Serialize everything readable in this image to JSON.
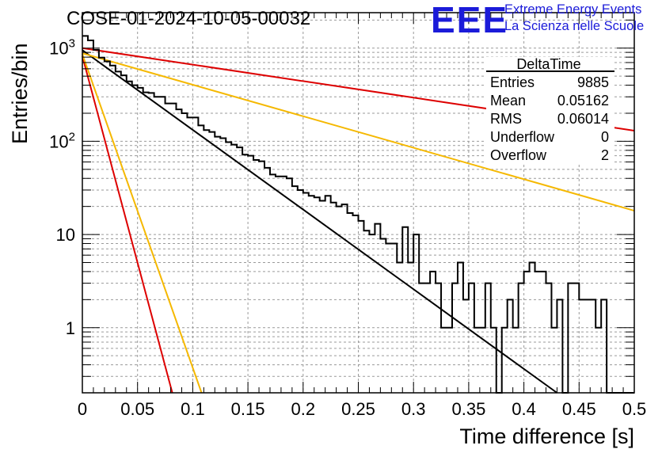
{
  "header": {
    "run_title": "COSE-01-2024-10-05-00032",
    "logo_text": "EEE",
    "logo_line1": "Extreme Energy Events",
    "logo_line2": "La Scienza nelle Scuole"
  },
  "stats_box": {
    "title": "DeltaTime",
    "rows": [
      {
        "label": "Entries",
        "value": "9885"
      },
      {
        "label": "Mean",
        "value": "0.05162"
      },
      {
        "label": "RMS",
        "value": "0.06014"
      },
      {
        "label": "Underflow",
        "value": "0"
      },
      {
        "label": "Overflow",
        "value": "2"
      }
    ]
  },
  "colors": {
    "histogram": "#000000",
    "fit_black": "#000000",
    "red": "#dd0000",
    "orange": "#f5b800",
    "grid": "#9a9a9a"
  },
  "chart_data": {
    "type": "line",
    "title": "",
    "xlabel": "Time difference [s]",
    "ylabel": "Entries/bin",
    "xlim": [
      0,
      0.5
    ],
    "ylim": [
      0.2,
      2400
    ],
    "yscale": "log",
    "grid": true,
    "legend": "none",
    "x_ticks": [
      "0",
      "0.05",
      "0.1",
      "0.15",
      "0.2",
      "0.25",
      "0.3",
      "0.35",
      "0.4",
      "0.45",
      "0.5"
    ],
    "y_ticks": [
      {
        "value": 1,
        "base": "1",
        "exp": ""
      },
      {
        "value": 10,
        "base": "10",
        "exp": ""
      },
      {
        "value": 100,
        "base": "10",
        "exp": "2"
      },
      {
        "value": 1000,
        "base": "10",
        "exp": "3"
      }
    ],
    "histogram": {
      "bin_width": 0.005,
      "counts": [
        1350,
        1210,
        960,
        790,
        720,
        650,
        560,
        510,
        440,
        400,
        375,
        335,
        330,
        300,
        300,
        255,
        255,
        220,
        200,
        180,
        180,
        148,
        132,
        126,
        112,
        108,
        98,
        92,
        86,
        72,
        70,
        63,
        61,
        52,
        44,
        42,
        42,
        40,
        33,
        30,
        28,
        26,
        25,
        23,
        26,
        22,
        20,
        21,
        17,
        16,
        14,
        11,
        10,
        13,
        9,
        8,
        8,
        5,
        12,
        5,
        10,
        3,
        3,
        4,
        3,
        1,
        1,
        3,
        5,
        2,
        3,
        1,
        1,
        3,
        1,
        0.2,
        1,
        2,
        1,
        3,
        4,
        5,
        4,
        4,
        3,
        1,
        2,
        0.2,
        3,
        3,
        2,
        2,
        2,
        1,
        2,
        0.2,
        0.2,
        0.2,
        0.2,
        0.2
      ]
    },
    "series": [
      {
        "color": "black",
        "x": [
          0,
          0.43
        ],
        "y": [
          950,
          0.2
        ]
      },
      {
        "color": "red",
        "x": [
          0,
          0.5
        ],
        "y": [
          1000,
          130
        ]
      },
      {
        "color": "orange",
        "x": [
          0,
          0.5
        ],
        "y": [
          880,
          18
        ]
      },
      {
        "color": "red",
        "x": [
          0,
          0.0815
        ],
        "y": [
          820,
          0.2
        ]
      },
      {
        "color": "orange",
        "x": [
          0,
          0.108
        ],
        "y": [
          860,
          0.2
        ]
      }
    ]
  }
}
